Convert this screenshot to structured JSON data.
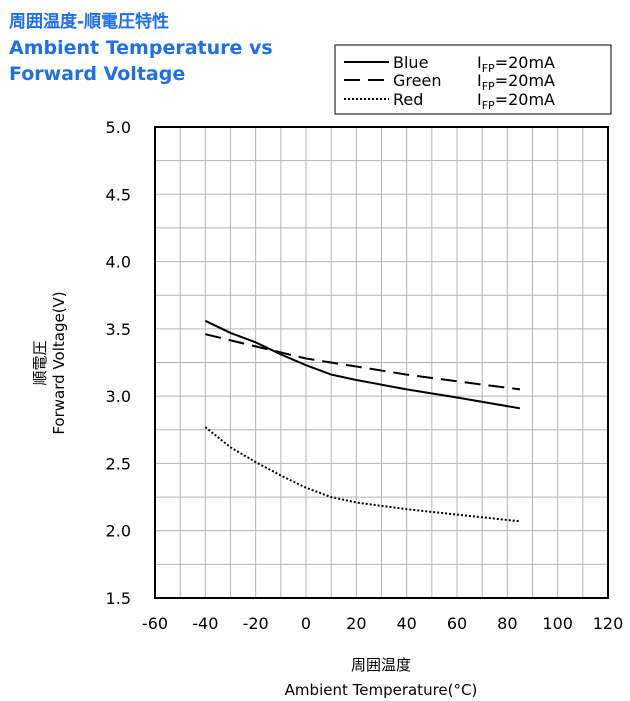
{
  "title": {
    "jp": "周囲温度-順電圧特性",
    "en_line1": "Ambient Temperature vs",
    "en_line2": "Forward Voltage"
  },
  "chart_data": {
    "type": "line",
    "x_ticks": [
      "-60",
      "-40",
      "-20",
      "0",
      "20",
      "40",
      "60",
      "80",
      "100",
      "120"
    ],
    "y_ticks": [
      "1.5",
      "2.0",
      "2.5",
      "3.0",
      "3.5",
      "4.0",
      "4.5",
      "5.0"
    ],
    "xlim": [
      -60,
      120
    ],
    "ylim": [
      1.5,
      5.0
    ],
    "grid": true,
    "legend_position": "top-right",
    "xlabel_jp": "周囲温度",
    "xlabel": "Ambient Temperature(°C)",
    "ylabel_jp": "順電圧",
    "ylabel": "Forward Voltage(V)",
    "series": [
      {
        "name": "Blue",
        "condition_main": "I",
        "condition_sub": "FP",
        "condition_value": "=20mA",
        "style": "solid",
        "x": [
          -40,
          -30,
          -20,
          -10,
          0,
          10,
          20,
          40,
          60,
          85
        ],
        "y": [
          3.56,
          3.47,
          3.4,
          3.31,
          3.23,
          3.16,
          3.12,
          3.05,
          2.99,
          2.91
        ]
      },
      {
        "name": "Green",
        "condition_main": "I",
        "condition_sub": "FP",
        "condition_value": "=20mA",
        "style": "dashed",
        "x": [
          -40,
          -20,
          0,
          20,
          40,
          60,
          85
        ],
        "y": [
          3.46,
          3.37,
          3.28,
          3.22,
          3.16,
          3.11,
          3.05
        ]
      },
      {
        "name": "Red",
        "condition_main": "I",
        "condition_sub": "FP",
        "condition_value": "=20mA",
        "style": "dotted",
        "x": [
          -40,
          -30,
          -20,
          -10,
          0,
          10,
          20,
          40,
          60,
          85
        ],
        "y": [
          2.77,
          2.62,
          2.51,
          2.41,
          2.32,
          2.25,
          2.21,
          2.16,
          2.12,
          2.07
        ]
      }
    ]
  }
}
